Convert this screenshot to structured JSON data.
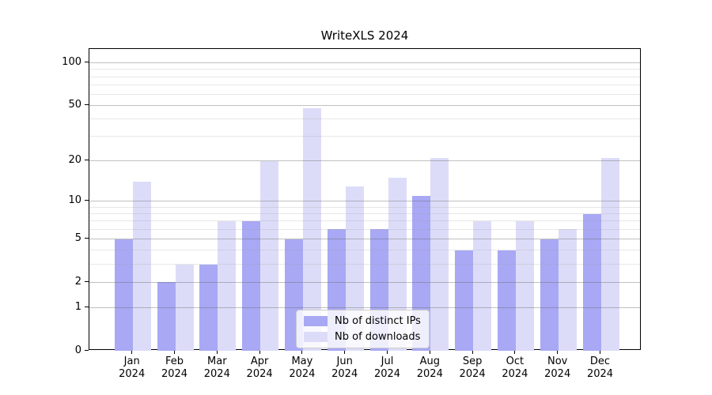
{
  "title": "WriteXLS 2024",
  "colors": {
    "distinct_ips_bar": "#a8a8f4",
    "downloads_bar": "#dcdcf9",
    "axis": "#000000",
    "grid_major": "rgba(105,105,105,0.42)",
    "grid_minor": "rgba(160,160,160,0.25)",
    "legend_border": "#cccccc",
    "legend_background": "rgba(255,255,255,0.8)"
  },
  "chart_data": {
    "type": "bar",
    "title": "WriteXLS 2024",
    "categories": [
      "Jan",
      "Feb",
      "Mar",
      "Apr",
      "May",
      "Jun",
      "Jul",
      "Aug",
      "Sep",
      "Oct",
      "Nov",
      "Dec"
    ],
    "year_label": "2024",
    "series": [
      {
        "name": "Nb of distinct IPs",
        "color": "#a8a8f4",
        "values": [
          5,
          2,
          3,
          7,
          5,
          6,
          6,
          11,
          4,
          4,
          5,
          8
        ]
      },
      {
        "name": "Nb of downloads",
        "color": "#dcdcf9",
        "values": [
          14,
          3,
          7,
          20,
          48,
          13,
          15,
          21,
          7,
          7,
          6,
          21
        ]
      }
    ],
    "xlabel": "",
    "ylabel": "",
    "y_scale": "log1p",
    "ylim": [
      0,
      126
    ],
    "y_ticks": [
      0,
      1,
      2,
      5,
      10,
      20,
      50,
      100
    ],
    "y_minor_ticks": [
      3,
      4,
      6,
      7,
      8,
      9,
      30,
      40,
      60,
      70,
      80,
      90
    ],
    "grid": "on",
    "legend_position": "lower center (inside plot)"
  }
}
